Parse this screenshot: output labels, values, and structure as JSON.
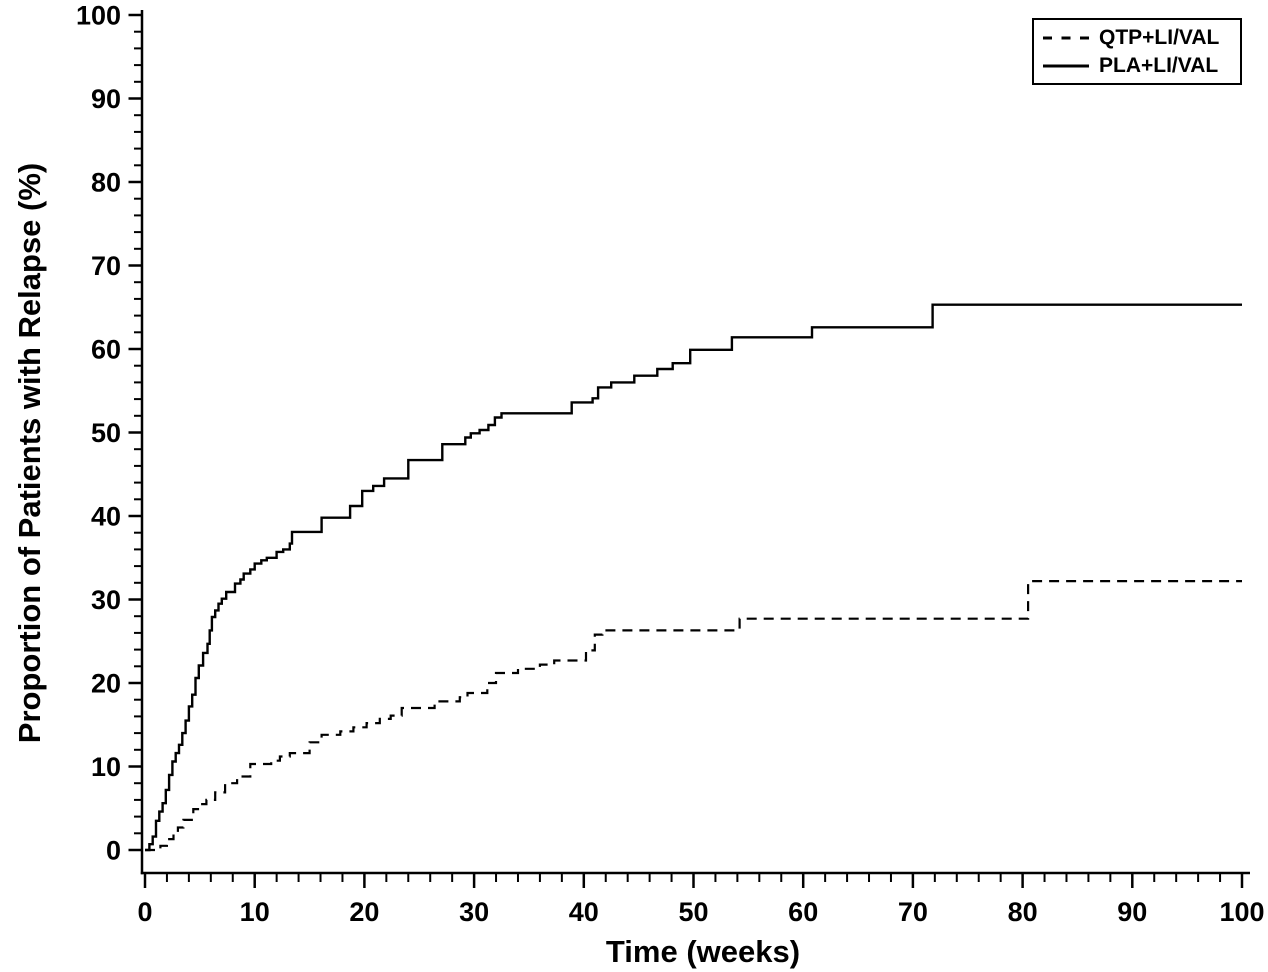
{
  "figure": {
    "background_color": "#ffffff",
    "ink_color": "#000000"
  },
  "legend": {
    "position": "top-right",
    "items": [
      {
        "label": "QTP+LI/VAL",
        "line_style": "dashed"
      },
      {
        "label": "PLA+LI/VAL",
        "line_style": "solid"
      }
    ]
  },
  "chart_data": {
    "type": "line",
    "subtype": "kaplan-meier-step",
    "title": "",
    "xlabel": "Time (weeks)",
    "ylabel": "Proportion of Patients with Relapse (%)",
    "xlim": [
      0,
      100
    ],
    "ylim": [
      0,
      100
    ],
    "grid": false,
    "legend_position": "top-right",
    "x_major_ticks": [
      0,
      10,
      20,
      30,
      40,
      50,
      60,
      70,
      80,
      90,
      100
    ],
    "x_minor_tick_interval": 2,
    "y_major_ticks": [
      0,
      10,
      20,
      30,
      40,
      50,
      60,
      70,
      80,
      90,
      100
    ],
    "y_minor_tick_interval": 2,
    "series": [
      {
        "name": "QTP+LI/VAL",
        "style": "dashed",
        "color": "#000000",
        "points": [
          [
            0,
            0
          ],
          [
            1.4,
            0.5
          ],
          [
            2.0,
            1.3
          ],
          [
            2.6,
            2.1
          ],
          [
            3.0,
            2.7
          ],
          [
            3.5,
            3.6
          ],
          [
            4.4,
            4.9
          ],
          [
            5.0,
            5.5
          ],
          [
            5.6,
            6.0
          ],
          [
            6.4,
            6.9
          ],
          [
            7.3,
            8.0
          ],
          [
            8.4,
            8.8
          ],
          [
            9.6,
            10.3
          ],
          [
            11.5,
            10.7
          ],
          [
            12.3,
            11.2
          ],
          [
            13.2,
            11.6
          ],
          [
            15.0,
            12.9
          ],
          [
            16.1,
            13.8
          ],
          [
            17.8,
            14.2
          ],
          [
            19.0,
            14.7
          ],
          [
            20.2,
            15.2
          ],
          [
            21.4,
            15.7
          ],
          [
            22.4,
            16.1
          ],
          [
            23.4,
            17.0
          ],
          [
            26.4,
            17.8
          ],
          [
            28.7,
            18.3
          ],
          [
            29.4,
            18.8
          ],
          [
            31.2,
            20.0
          ],
          [
            32.0,
            21.2
          ],
          [
            34.0,
            21.7
          ],
          [
            36.0,
            22.2
          ],
          [
            37.3,
            22.7
          ],
          [
            40.2,
            23.9
          ],
          [
            41.0,
            25.8
          ],
          [
            41.7,
            26.3
          ],
          [
            54.2,
            27.7
          ],
          [
            80.5,
            32.2
          ],
          [
            100,
            32.2
          ]
        ]
      },
      {
        "name": "PLA+LI/VAL",
        "style": "solid",
        "color": "#000000",
        "points": [
          [
            0,
            0
          ],
          [
            0.4,
            0.7
          ],
          [
            0.7,
            1.6
          ],
          [
            1.0,
            3.5
          ],
          [
            1.3,
            4.6
          ],
          [
            1.6,
            5.6
          ],
          [
            1.9,
            7.2
          ],
          [
            2.2,
            9.0
          ],
          [
            2.5,
            10.6
          ],
          [
            2.8,
            11.6
          ],
          [
            3.1,
            12.6
          ],
          [
            3.4,
            14.0
          ],
          [
            3.7,
            15.5
          ],
          [
            4.0,
            17.2
          ],
          [
            4.3,
            18.6
          ],
          [
            4.6,
            20.6
          ],
          [
            4.9,
            22.1
          ],
          [
            5.3,
            23.6
          ],
          [
            5.7,
            24.7
          ],
          [
            5.9,
            26.3
          ],
          [
            6.1,
            27.9
          ],
          [
            6.4,
            28.7
          ],
          [
            6.7,
            29.5
          ],
          [
            7.0,
            30.1
          ],
          [
            7.4,
            30.9
          ],
          [
            8.2,
            31.9
          ],
          [
            8.7,
            32.4
          ],
          [
            9.0,
            33.1
          ],
          [
            9.6,
            33.6
          ],
          [
            10.0,
            34.3
          ],
          [
            10.6,
            34.7
          ],
          [
            11.1,
            35.0
          ],
          [
            12.0,
            35.7
          ],
          [
            12.6,
            36.0
          ],
          [
            13.2,
            36.7
          ],
          [
            13.4,
            38.1
          ],
          [
            16.1,
            39.8
          ],
          [
            18.7,
            41.2
          ],
          [
            19.8,
            43.0
          ],
          [
            20.8,
            43.6
          ],
          [
            21.8,
            44.5
          ],
          [
            24.0,
            46.7
          ],
          [
            27.1,
            48.6
          ],
          [
            29.2,
            49.4
          ],
          [
            29.7,
            49.9
          ],
          [
            30.5,
            50.3
          ],
          [
            31.3,
            50.9
          ],
          [
            31.9,
            51.8
          ],
          [
            32.5,
            52.3
          ],
          [
            38.9,
            53.6
          ],
          [
            40.8,
            54.1
          ],
          [
            41.3,
            55.4
          ],
          [
            42.5,
            56.0
          ],
          [
            44.6,
            56.8
          ],
          [
            46.7,
            57.6
          ],
          [
            48.1,
            58.3
          ],
          [
            49.7,
            59.9
          ],
          [
            53.5,
            61.4
          ],
          [
            60.8,
            62.6
          ],
          [
            71.8,
            65.3
          ],
          [
            100,
            65.3
          ]
        ]
      }
    ]
  }
}
